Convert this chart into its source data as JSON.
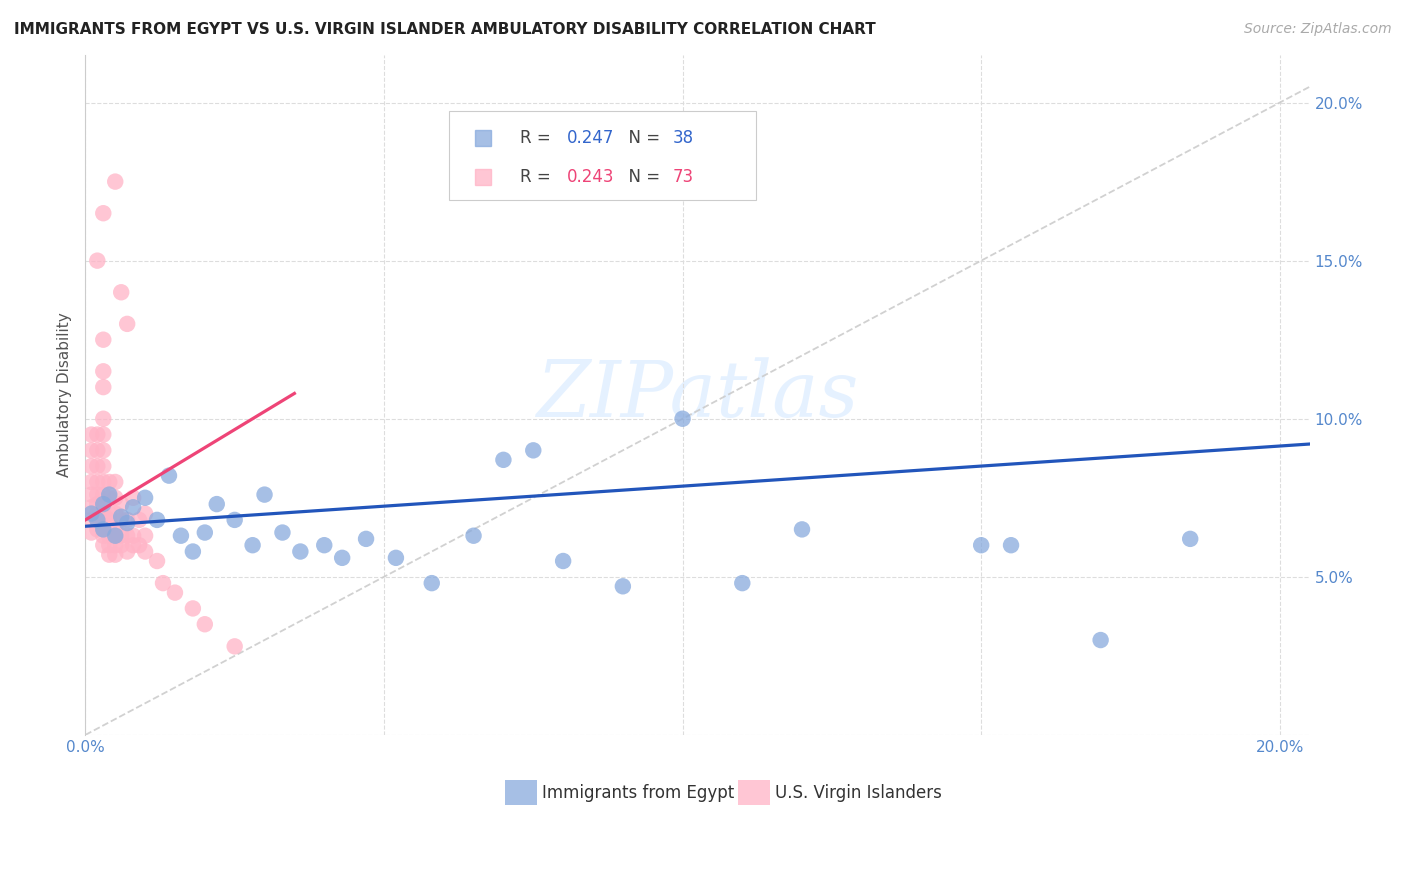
{
  "title": "IMMIGRANTS FROM EGYPT VS U.S. VIRGIN ISLANDER AMBULATORY DISABILITY CORRELATION CHART",
  "source": "Source: ZipAtlas.com",
  "ylabel": "Ambulatory Disability",
  "legend_label_blue": "Immigrants from Egypt",
  "legend_label_pink": "U.S. Virgin Islanders",
  "blue_color": "#88AADD",
  "pink_color": "#FFB3C6",
  "trendline_blue": "#2255BB",
  "trendline_pink": "#EE4477",
  "diagonal_color": "#CCCCCC",
  "r_blue": "0.247",
  "n_blue": "38",
  "r_pink": "0.243",
  "n_pink": "73",
  "xmin": 0.0,
  "xmax": 0.205,
  "ymin": 0.0,
  "ymax": 0.215,
  "blue_trend_x0": 0.0,
  "blue_trend_y0": 0.066,
  "blue_trend_x1": 0.205,
  "blue_trend_y1": 0.092,
  "pink_trend_x0": 0.0,
  "pink_trend_y0": 0.068,
  "pink_trend_x1": 0.035,
  "pink_trend_y1": 0.108,
  "blue_x": [
    0.001,
    0.002,
    0.003,
    0.003,
    0.004,
    0.005,
    0.006,
    0.007,
    0.008,
    0.01,
    0.012,
    0.014,
    0.016,
    0.018,
    0.02,
    0.022,
    0.025,
    0.028,
    0.03,
    0.033,
    0.036,
    0.04,
    0.043,
    0.047,
    0.052,
    0.058,
    0.065,
    0.07,
    0.075,
    0.08,
    0.09,
    0.1,
    0.11,
    0.12,
    0.15,
    0.17,
    0.185,
    0.155
  ],
  "blue_y": [
    0.07,
    0.068,
    0.073,
    0.065,
    0.076,
    0.063,
    0.069,
    0.067,
    0.072,
    0.075,
    0.068,
    0.082,
    0.063,
    0.058,
    0.064,
    0.073,
    0.068,
    0.06,
    0.076,
    0.064,
    0.058,
    0.06,
    0.056,
    0.062,
    0.056,
    0.048,
    0.063,
    0.087,
    0.09,
    0.055,
    0.047,
    0.1,
    0.048,
    0.065,
    0.06,
    0.03,
    0.062,
    0.06
  ],
  "pink_x": [
    0.001,
    0.001,
    0.001,
    0.001,
    0.001,
    0.001,
    0.001,
    0.001,
    0.002,
    0.002,
    0.002,
    0.002,
    0.002,
    0.002,
    0.002,
    0.002,
    0.002,
    0.002,
    0.003,
    0.003,
    0.003,
    0.003,
    0.003,
    0.003,
    0.003,
    0.003,
    0.003,
    0.003,
    0.003,
    0.003,
    0.003,
    0.003,
    0.003,
    0.003,
    0.004,
    0.004,
    0.004,
    0.004,
    0.004,
    0.004,
    0.004,
    0.004,
    0.005,
    0.005,
    0.005,
    0.005,
    0.005,
    0.005,
    0.005,
    0.005,
    0.006,
    0.006,
    0.006,
    0.006,
    0.006,
    0.007,
    0.007,
    0.007,
    0.007,
    0.008,
    0.008,
    0.008,
    0.009,
    0.009,
    0.01,
    0.01,
    0.01,
    0.012,
    0.013,
    0.015,
    0.018,
    0.02,
    0.025
  ],
  "pink_y": [
    0.068,
    0.072,
    0.076,
    0.08,
    0.085,
    0.09,
    0.095,
    0.064,
    0.065,
    0.068,
    0.07,
    0.073,
    0.076,
    0.08,
    0.085,
    0.09,
    0.095,
    0.15,
    0.06,
    0.063,
    0.065,
    0.068,
    0.07,
    0.073,
    0.076,
    0.08,
    0.085,
    0.09,
    0.095,
    0.1,
    0.11,
    0.115,
    0.125,
    0.165,
    0.057,
    0.06,
    0.063,
    0.065,
    0.068,
    0.07,
    0.075,
    0.08,
    0.057,
    0.06,
    0.063,
    0.065,
    0.07,
    0.075,
    0.08,
    0.175,
    0.06,
    0.063,
    0.068,
    0.073,
    0.14,
    0.058,
    0.063,
    0.068,
    0.13,
    0.06,
    0.063,
    0.075,
    0.06,
    0.068,
    0.058,
    0.063,
    0.07,
    0.055,
    0.048,
    0.045,
    0.04,
    0.035,
    0.028
  ]
}
